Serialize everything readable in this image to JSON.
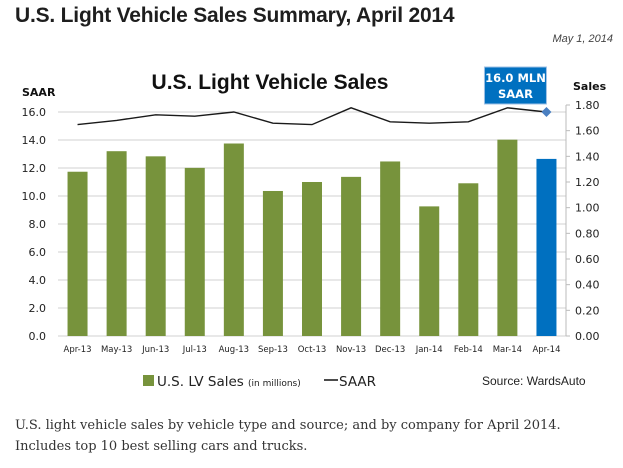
{
  "page": {
    "title": "U.S. Light Vehicle Sales Summary, April 2014",
    "date": "May 1, 2014",
    "caption_lines": [
      "U.S. light vehicle sales by vehicle type and source; and by company for April 2014.",
      "Includes top 10 best selling cars and trucks."
    ]
  },
  "colors": {
    "bar": "#77933C",
    "highlight_bar": "#0070C0",
    "line": "#1a1a1a",
    "callout": "#0070C0",
    "gridline": "#d0d0d0"
  },
  "chart_data": {
    "type": "bar",
    "title": "U.S. Light Vehicle Sales",
    "categories": [
      "Apr-13",
      "May-13",
      "Jun-13",
      "Jul-13",
      "Aug-13",
      "Sep-13",
      "Oct-13",
      "Nov-13",
      "Dec-13",
      "Jan-14",
      "Feb-14",
      "Mar-14",
      "Apr-14"
    ],
    "series": [
      {
        "name": "U.S. LV Sales",
        "name_suffix": "(in millions)",
        "type": "bar",
        "axis": "right",
        "values": [
          1.28,
          1.44,
          1.4,
          1.31,
          1.5,
          1.13,
          1.2,
          1.24,
          1.36,
          1.01,
          1.19,
          1.53,
          1.38
        ],
        "highlight_index": 12
      },
      {
        "name": "SAAR",
        "type": "line",
        "axis": "left",
        "values": [
          15.1,
          15.4,
          15.8,
          15.7,
          16.0,
          15.2,
          15.1,
          16.3,
          15.3,
          15.2,
          15.3,
          16.3,
          16.0
        ],
        "marker_index": 12
      }
    ],
    "left_axis": {
      "label": "SAAR",
      "range": [
        0,
        16.0
      ],
      "ticks": [
        "0.0",
        "2.0",
        "4.0",
        "6.0",
        "8.0",
        "10.0",
        "12.0",
        "14.0",
        "16.0"
      ]
    },
    "right_axis": {
      "label": "Sales",
      "range": [
        0,
        1.8
      ],
      "ticks": [
        "0.00",
        "0.20",
        "0.40",
        "0.60",
        "0.80",
        "1.00",
        "1.20",
        "1.40",
        "1.60",
        "1.80"
      ]
    },
    "annotation": {
      "lines": [
        "16.0 MLN",
        "SAAR"
      ],
      "points_to": "Apr-14"
    },
    "grid": true,
    "legend": {
      "position": "bottom",
      "entries": [
        "U.S. LV Sales (in millions)",
        "SAAR"
      ]
    },
    "source": "Source: WardsAuto"
  }
}
